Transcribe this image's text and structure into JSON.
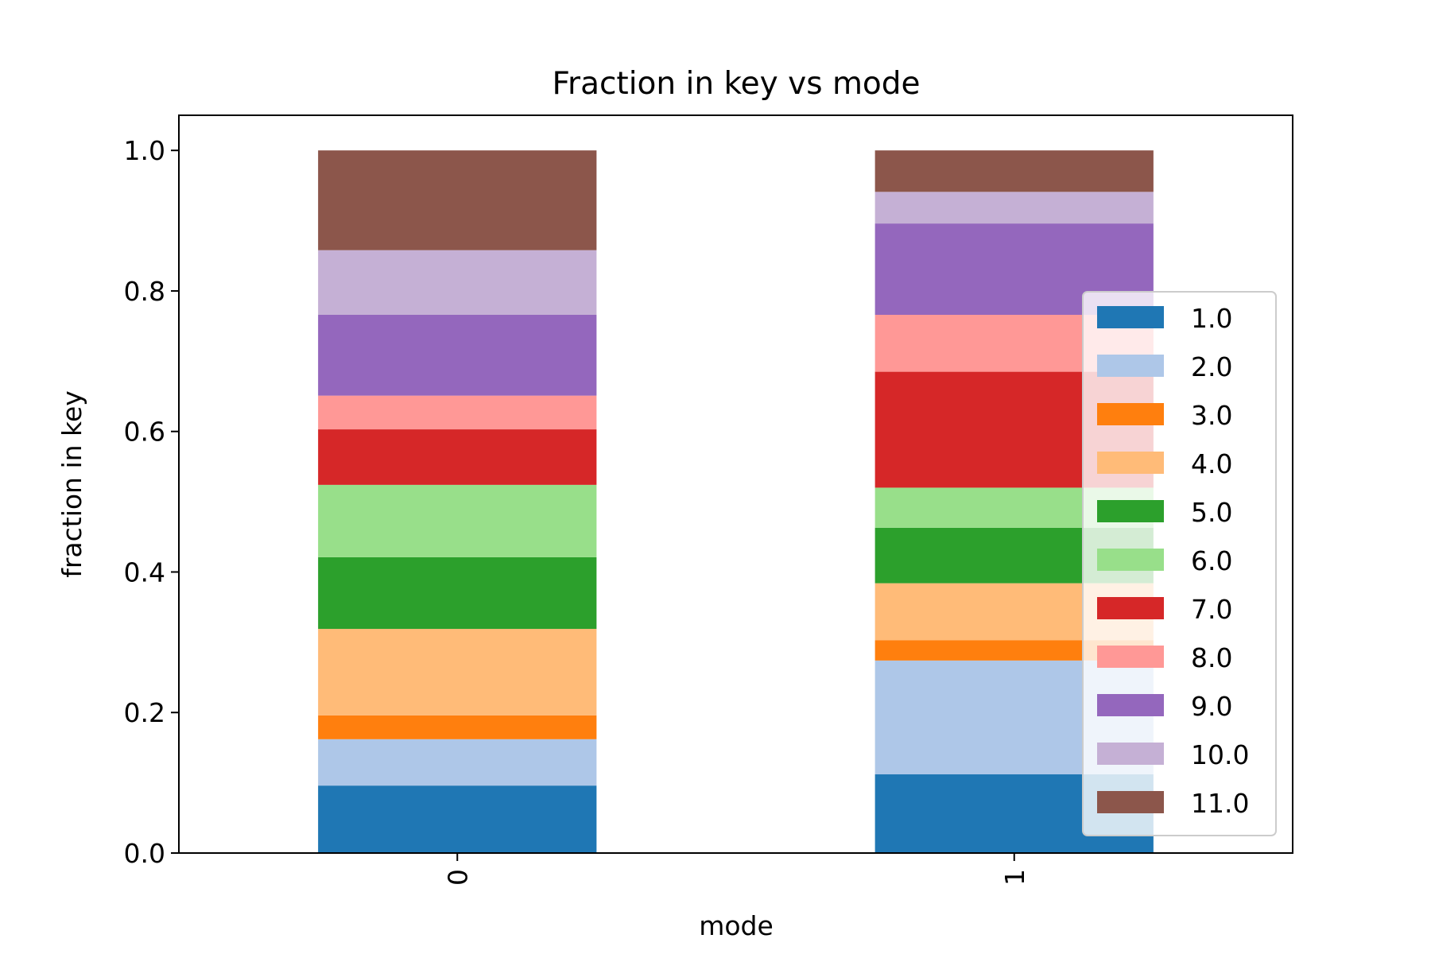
{
  "chart_data": {
    "type": "bar",
    "stacked": true,
    "title": "Fraction in key vs mode",
    "xlabel": "mode",
    "ylabel": "fraction in key",
    "categories": [
      "0",
      "1"
    ],
    "ylim": [
      0,
      1.05
    ],
    "yticks": [
      "0.0",
      "0.2",
      "0.4",
      "0.6",
      "0.8",
      "1.0"
    ],
    "grid": false,
    "legend_position": "lower-right",
    "series": [
      {
        "name": "1.0",
        "color": "#1f77b4",
        "values": [
          0.096,
          0.112
        ]
      },
      {
        "name": "2.0",
        "color": "#aec7e8",
        "values": [
          0.066,
          0.162
        ]
      },
      {
        "name": "3.0",
        "color": "#ff7f0e",
        "values": [
          0.034,
          0.029
        ]
      },
      {
        "name": "4.0",
        "color": "#ffbb78",
        "values": [
          0.123,
          0.081
        ]
      },
      {
        "name": "5.0",
        "color": "#2ca02c",
        "values": [
          0.102,
          0.079
        ]
      },
      {
        "name": "6.0",
        "color": "#98df8a",
        "values": [
          0.103,
          0.057
        ]
      },
      {
        "name": "7.0",
        "color": "#d62728",
        "values": [
          0.079,
          0.165
        ]
      },
      {
        "name": "8.0",
        "color": "#ff9896",
        "values": [
          0.048,
          0.081
        ]
      },
      {
        "name": "9.0",
        "color": "#9467bd",
        "values": [
          0.115,
          0.13
        ]
      },
      {
        "name": "10.0",
        "color": "#c5b0d5",
        "values": [
          0.092,
          0.045
        ]
      },
      {
        "name": "11.0",
        "color": "#8c564b",
        "values": [
          0.142,
          0.059
        ]
      }
    ]
  }
}
